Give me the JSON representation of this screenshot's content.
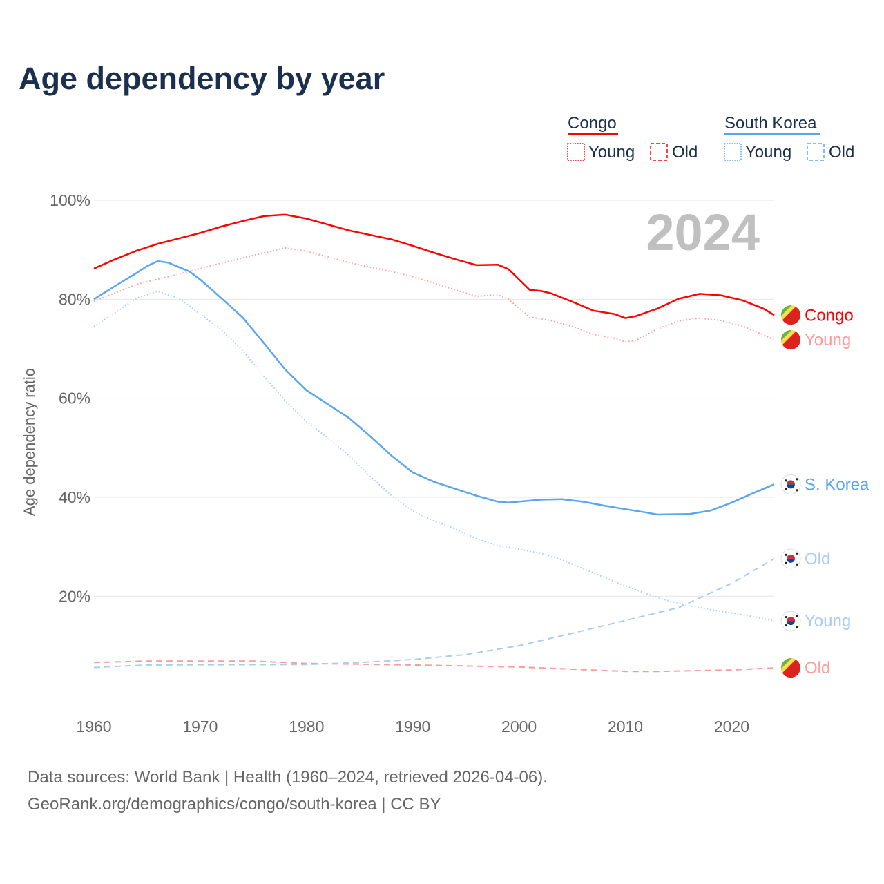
{
  "title": "Age dependency by year",
  "footer": {
    "line1": "Data sources: World Bank | Health (1960–2024, retrieved 2026-04-06).",
    "line2": "GeoRank.org/demographics/congo/south-korea | CC BY"
  },
  "chart_data": {
    "type": "line",
    "title": "Age dependency by year",
    "ylabel": "Age dependency ratio",
    "xlabel": "",
    "xlim": [
      1960,
      2024
    ],
    "ylim": [
      0,
      100
    ],
    "x_ticks": [
      "1960",
      "1970",
      "1980",
      "1990",
      "2000",
      "2010",
      "2020"
    ],
    "y_ticks": [
      "20%",
      "40%",
      "60%",
      "80%",
      "100%"
    ],
    "year_watermark": "2024",
    "grid": true,
    "legend": {
      "placement": "top-right",
      "groups": [
        {
          "name": "Congo",
          "color": "#ff0000",
          "young": "Young",
          "old": "Old"
        },
        {
          "name": "South Korea",
          "color": "#5aa5f0",
          "young": "Young",
          "old": "Old"
        }
      ]
    },
    "series": [
      {
        "name": "Congo total",
        "color": "#ff0000",
        "style": "solid",
        "end_label": "Congo",
        "flag": "congo",
        "x": [
          1960,
          1962,
          1964,
          1966,
          1968,
          1970,
          1972,
          1974,
          1976,
          1978,
          1980,
          1982,
          1984,
          1986,
          1988,
          1990,
          1992,
          1994,
          1996,
          1998,
          1999,
          2001,
          2002,
          2003,
          2005,
          2007,
          2009,
          2010,
          2011,
          2013,
          2015,
          2017,
          2019,
          2021,
          2023,
          2024
        ],
        "y": [
          86.2,
          88.1,
          89.8,
          91.2,
          92.3,
          93.4,
          94.7,
          95.8,
          96.8,
          97.1,
          96.3,
          95.1,
          93.9,
          93.0,
          92.1,
          90.8,
          89.4,
          88.1,
          86.9,
          87.0,
          86.1,
          81.9,
          81.7,
          81.2,
          79.5,
          77.7,
          77.0,
          76.2,
          76.6,
          78.1,
          80.1,
          81.1,
          80.8,
          79.8,
          78.1,
          76.8
        ]
      },
      {
        "name": "Congo young",
        "color": "#ff9a9a",
        "style": "dotted",
        "end_label": "Young",
        "flag": "congo",
        "x": [
          1960,
          1964,
          1968,
          1972,
          1976,
          1978,
          1980,
          1984,
          1988,
          1990,
          1994,
          1996,
          1998,
          1999,
          2001,
          2003,
          2005,
          2007,
          2009,
          2010,
          2011,
          2013,
          2015,
          2017,
          2019,
          2021,
          2023,
          2024
        ],
        "y": [
          79.6,
          83.0,
          85.1,
          87.3,
          89.4,
          90.4,
          89.7,
          87.4,
          85.6,
          84.6,
          81.9,
          80.6,
          80.9,
          80.0,
          76.4,
          75.7,
          74.5,
          72.9,
          72.1,
          71.4,
          71.7,
          74.0,
          75.6,
          76.2,
          75.7,
          74.6,
          72.8,
          71.8
        ]
      },
      {
        "name": "Congo old",
        "color": "#ff9a9a",
        "style": "dashed",
        "end_label": "Old",
        "flag": "congo",
        "x": [
          1960,
          1965,
          1975,
          1980,
          1990,
          2000,
          2010,
          2013,
          2020,
          2024
        ],
        "y": [
          6.6,
          6.9,
          6.9,
          6.4,
          6.1,
          5.7,
          4.8,
          4.8,
          5.1,
          5.5
        ]
      },
      {
        "name": "South Korea total",
        "color": "#5aa5f0",
        "style": "solid",
        "end_label": "S. Korea",
        "flag": "korea",
        "x": [
          1960,
          1962,
          1964,
          1965,
          1966,
          1967,
          1969,
          1970,
          1972,
          1974,
          1976,
          1978,
          1980,
          1982,
          1984,
          1986,
          1988,
          1990,
          1992,
          1994,
          1996,
          1998,
          1999,
          2002,
          2004,
          2006,
          2008,
          2010,
          2012,
          2013,
          2016,
          2018,
          2020,
          2022,
          2024
        ],
        "y": [
          80.0,
          82.7,
          85.3,
          86.7,
          87.7,
          87.4,
          85.6,
          84.0,
          80.2,
          76.3,
          71.1,
          65.8,
          61.6,
          58.8,
          56.0,
          52.3,
          48.4,
          45.0,
          43.1,
          41.7,
          40.3,
          39.1,
          38.9,
          39.5,
          39.6,
          39.1,
          38.3,
          37.6,
          36.9,
          36.5,
          36.6,
          37.3,
          38.9,
          40.8,
          42.6
        ]
      },
      {
        "name": "South Korea old",
        "color": "#a8cdf3",
        "style": "dashed",
        "end_label": "Old",
        "flag": "korea",
        "x": [
          1960,
          1965,
          1980,
          1985,
          1990,
          1995,
          2000,
          2005,
          2010,
          2015,
          2020,
          2024
        ],
        "y": [
          5.6,
          6.1,
          6.2,
          6.6,
          7.2,
          8.2,
          10.0,
          12.5,
          15.1,
          17.7,
          22.6,
          27.6
        ]
      },
      {
        "name": "South Korea young",
        "color": "#a8cdf3",
        "style": "dotted",
        "end_label": "Young",
        "flag": "korea",
        "x": [
          1960,
          1962,
          1964,
          1966,
          1968,
          1970,
          1972,
          1974,
          1976,
          1978,
          1980,
          1982,
          1984,
          1986,
          1988,
          1990,
          1992,
          1994,
          1996,
          1998,
          2000,
          2002,
          2004,
          2006,
          2008,
          2010,
          2012,
          2014,
          2016,
          2018,
          2020,
          2022,
          2024
        ],
        "y": [
          74.5,
          77.3,
          80.2,
          81.6,
          80.2,
          77.0,
          73.8,
          69.6,
          64.4,
          59.5,
          55.3,
          52.0,
          48.4,
          44.2,
          40.3,
          37.2,
          35.2,
          33.6,
          31.6,
          30.2,
          29.5,
          28.7,
          27.4,
          25.6,
          23.8,
          22.1,
          20.5,
          19.1,
          18.1,
          17.3,
          16.6,
          15.9,
          15.0
        ]
      }
    ]
  }
}
